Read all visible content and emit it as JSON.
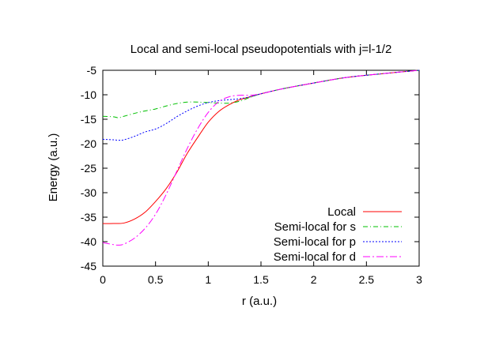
{
  "chart_data": {
    "type": "line",
    "title": "Local and semi-local pseudopotentials with j=l-1/2",
    "xlabel": "r (a.u.)",
    "ylabel": "Energy (a.u.)",
    "xlim": [
      0,
      3
    ],
    "ylim": [
      -45,
      -5
    ],
    "x_ticks": [
      0,
      0.5,
      1,
      1.5,
      2,
      2.5,
      3
    ],
    "x_tick_labels": [
      "0",
      "0.5",
      "1",
      "1.5",
      "2",
      "2.5",
      "3"
    ],
    "y_ticks": [
      -45,
      -40,
      -35,
      -30,
      -25,
      -20,
      -15,
      -10,
      -5
    ],
    "y_tick_labels": [
      "-45",
      "-40",
      "-35",
      "-30",
      "-25",
      "-20",
      "-15",
      "-10",
      "-5"
    ],
    "grid": false,
    "legend_position": "bottom-right",
    "series": [
      {
        "name": "Local",
        "color": "#ff0000",
        "dash": "solid",
        "x": [
          0,
          0.1,
          0.2,
          0.3,
          0.4,
          0.5,
          0.6,
          0.7,
          0.8,
          0.9,
          1.0,
          1.1,
          1.2,
          1.3,
          1.4,
          1.5,
          1.7,
          2.0,
          2.3,
          2.6,
          3.0
        ],
        "y": [
          -36.3,
          -36.3,
          -36.2,
          -35.4,
          -34.0,
          -31.8,
          -29.2,
          -25.9,
          -22.0,
          -18.7,
          -15.6,
          -13.4,
          -12.0,
          -11.0,
          -10.4,
          -9.8,
          -8.8,
          -7.6,
          -6.5,
          -5.8,
          -5.0
        ]
      },
      {
        "name": "Semi-local for s",
        "color": "#00c000",
        "dash": "dash-dot",
        "x": [
          0,
          0.1,
          0.15,
          0.2,
          0.3,
          0.4,
          0.5,
          0.6,
          0.7,
          0.8,
          0.9,
          1.0,
          1.1,
          1.2,
          1.3,
          1.4,
          1.5,
          1.7,
          2.0,
          2.3,
          2.6,
          3.0
        ],
        "y": [
          -14.4,
          -14.5,
          -14.7,
          -14.4,
          -13.8,
          -13.3,
          -12.9,
          -12.3,
          -11.8,
          -11.5,
          -11.5,
          -11.6,
          -11.7,
          -11.7,
          -11.3,
          -10.5,
          -9.8,
          -8.8,
          -7.6,
          -6.5,
          -5.8,
          -5.0
        ]
      },
      {
        "name": "Semi-local for p",
        "color": "#0000ff",
        "dash": "dotted",
        "x": [
          0,
          0.1,
          0.15,
          0.2,
          0.3,
          0.4,
          0.5,
          0.6,
          0.7,
          0.8,
          0.9,
          1.0,
          1.1,
          1.2,
          1.3,
          1.4,
          1.5,
          1.7,
          2.0,
          2.3,
          2.6,
          3.0
        ],
        "y": [
          -19.1,
          -19.2,
          -19.3,
          -19.2,
          -18.5,
          -17.6,
          -17.0,
          -15.9,
          -14.5,
          -13.3,
          -12.3,
          -11.6,
          -11.2,
          -11.0,
          -10.8,
          -10.4,
          -9.8,
          -8.8,
          -7.6,
          -6.5,
          -5.8,
          -5.0
        ]
      },
      {
        "name": "Semi-local for d",
        "color": "#ff00ff",
        "dash": "long-dash-dot",
        "x": [
          0,
          0.1,
          0.15,
          0.2,
          0.3,
          0.4,
          0.5,
          0.6,
          0.7,
          0.8,
          0.9,
          1.0,
          1.1,
          1.2,
          1.3,
          1.4,
          1.5,
          1.7,
          2.0,
          2.3,
          2.6,
          3.0
        ],
        "y": [
          -40.2,
          -40.6,
          -40.7,
          -40.5,
          -39.3,
          -37.3,
          -34.4,
          -30.4,
          -25.7,
          -21.0,
          -16.9,
          -13.6,
          -11.4,
          -10.4,
          -10.1,
          -10.1,
          -9.8,
          -8.8,
          -7.6,
          -6.5,
          -5.8,
          -5.0
        ]
      }
    ]
  }
}
